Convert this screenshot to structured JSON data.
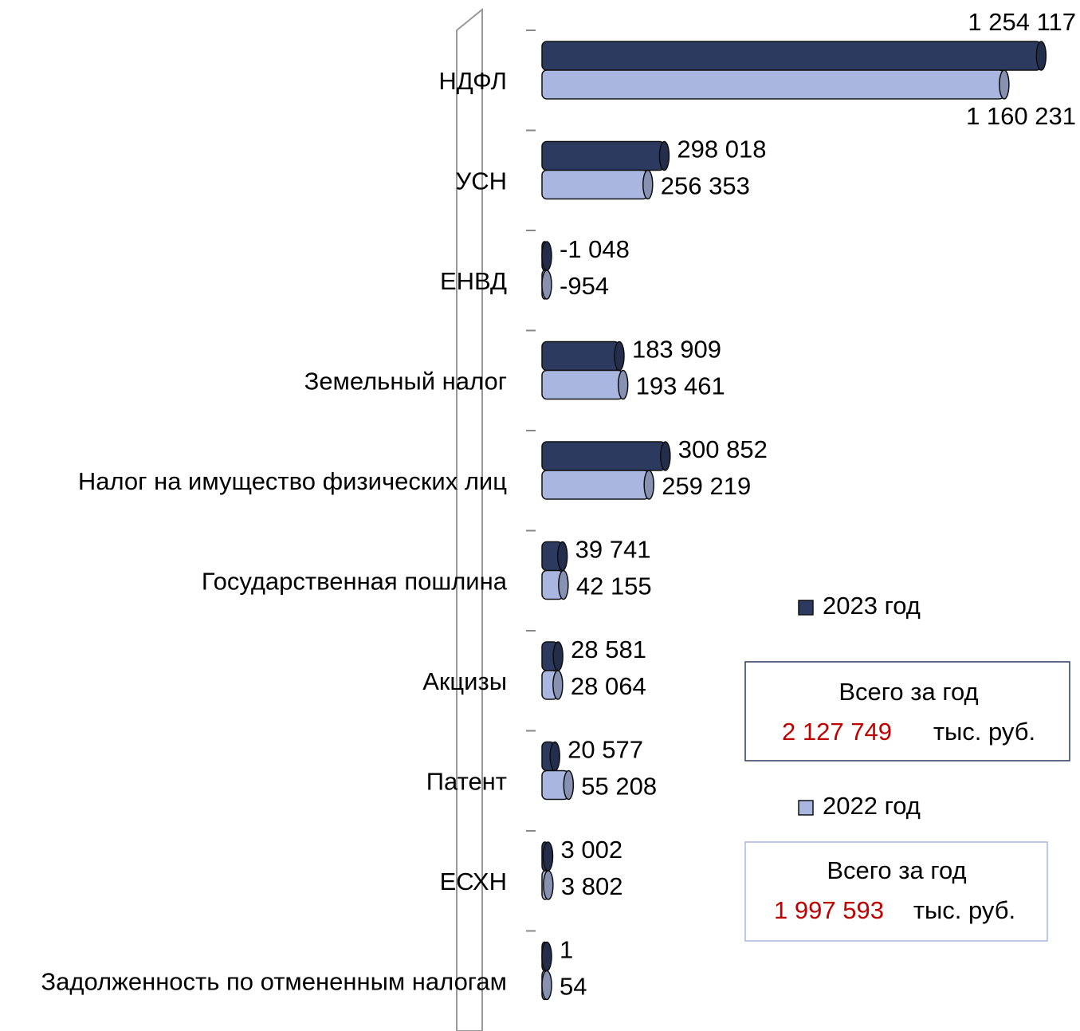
{
  "chart_data": {
    "type": "bar",
    "orientation": "horizontal",
    "categories": [
      "НДФЛ",
      "УСН",
      "ЕНВД",
      "Земельный налог",
      "Налог на имущество физических лиц",
      "Государственная пошлина",
      "Акцизы",
      "Патент",
      "ЕСХН",
      "Задолженность по отмененным налогам"
    ],
    "series": [
      {
        "name": "2023 год",
        "color": "#2b3a5e",
        "values": [
          1254117,
          298018,
          -1048,
          183909,
          300852,
          39741,
          28581,
          20577,
          3002,
          1
        ],
        "value_labels": [
          "1 254 117",
          "298 018",
          "-1 048",
          "183 909",
          "300 852",
          "39 741",
          "28 581",
          "20 577",
          "3 002",
          "1"
        ]
      },
      {
        "name": "2022 год",
        "color": "#a9b6e0",
        "values": [
          1160231,
          256353,
          -954,
          193461,
          259219,
          42155,
          28064,
          55208,
          3802,
          54
        ],
        "value_labels": [
          "1 160 231",
          "256 353",
          "-954",
          "193 461",
          "259 219",
          "42 155",
          "28 064",
          "55 208",
          "3 802",
          "54"
        ]
      }
    ],
    "xlim": [
      0,
      1300000
    ],
    "annotations": [
      {
        "title": "Всего за год",
        "value": "2 127 749",
        "unit": "тыс. руб."
      },
      {
        "title": "Всего за год",
        "value": "1 997 593",
        "unit": "тыс. руб."
      }
    ]
  }
}
